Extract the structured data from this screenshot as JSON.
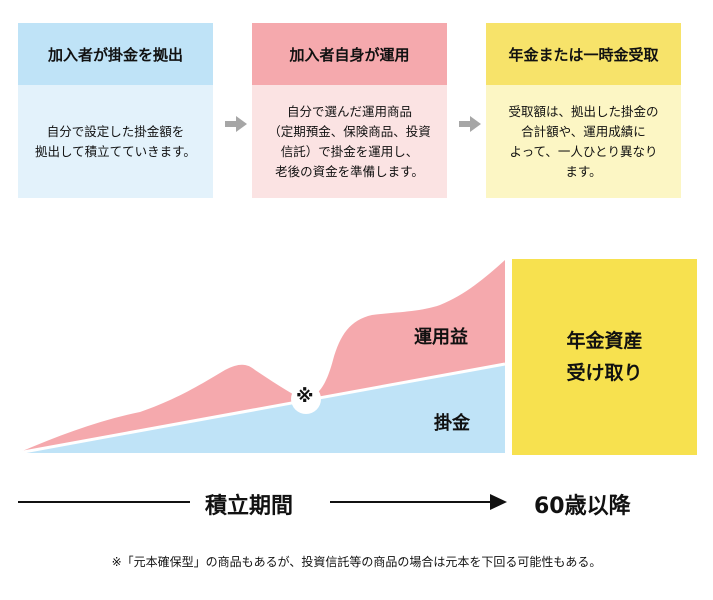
{
  "steps": [
    {
      "title": "加入者が掛金を拠出",
      "body": "自分で設定した掛金額を\n拠出して積立てていきます。",
      "color": "#bfe3f7"
    },
    {
      "title": "加入者自身が運用",
      "body": "自分で選んだ運用商品\n（定期預金、保険商品、投資\n信託）で掛金を運用し、\n老後の資金を準備します。",
      "color": "#f5a9ad"
    },
    {
      "title": "年金または一時金受取",
      "body": "受取額は、拠出した掛金の\n合計額や、運用成績に\nよって、一人ひとり異なり\nます。",
      "color": "#f7e36a"
    }
  ],
  "diagram": {
    "profit_label": "運用益",
    "contribution_label": "掛金",
    "note_mark": "※",
    "payout_label": "年金資産\n受け取り"
  },
  "timeline": {
    "period_label": "積立期間",
    "age_label": "60歳以降"
  },
  "footnote": "※「元本確保型」の商品もあるが、投資信託等の商品の場合は元本を下回る可能性もある。",
  "colors": {
    "pink": "#f5a9ad",
    "blue": "#bfe3f7",
    "yellow": "#f7e14f",
    "arrow_gray": "#a6a6a6"
  }
}
